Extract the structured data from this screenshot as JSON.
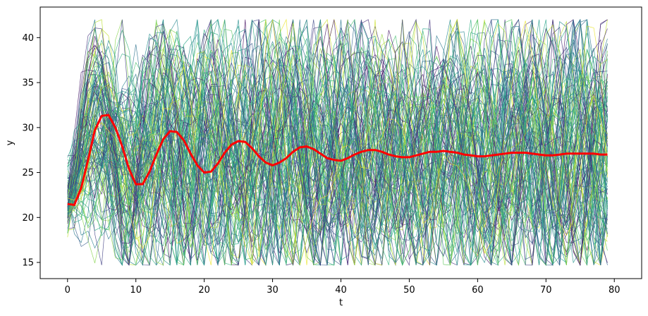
{
  "chart_data": {
    "type": "line",
    "title": "",
    "xlabel": "t",
    "ylabel": "y",
    "xlim": [
      -4,
      84
    ],
    "ylim": [
      13.2,
      43.4
    ],
    "xticks": [
      0,
      10,
      20,
      30,
      40,
      50,
      60,
      70,
      80
    ],
    "yticks": [
      15,
      20,
      25,
      30,
      35,
      40
    ],
    "grid": false,
    "legend": "none",
    "ensemble": {
      "count": 120,
      "t_start": 0,
      "t_end": 79,
      "colormap": "viridis",
      "linewidth_note": "thin",
      "description_values": {
        "start_range": [
          15,
          24
        ],
        "spread_range": [
          14.5,
          42
        ]
      }
    },
    "mean_series": {
      "color": "#ff0000",
      "x": [
        0,
        1,
        2,
        3,
        4,
        5,
        6,
        7,
        8,
        9,
        10,
        11,
        12,
        13,
        14,
        15,
        16,
        17,
        18,
        19,
        20,
        21,
        22,
        23,
        24,
        25,
        26,
        27,
        28,
        29,
        30,
        31,
        32,
        33,
        34,
        35,
        36,
        37,
        38,
        39,
        40,
        41,
        42,
        43,
        44,
        45,
        46,
        47,
        48,
        49,
        50,
        51,
        52,
        53,
        54,
        55,
        56,
        57,
        58,
        59,
        60,
        61,
        62,
        63,
        64,
        65,
        66,
        67,
        68,
        69,
        70,
        71,
        72,
        73,
        74,
        75,
        76,
        77,
        78,
        79
      ],
      "y": [
        21.5,
        21.4,
        23.3,
        26.4,
        29.7,
        31.3,
        31.4,
        30.0,
        27.9,
        25.4,
        23.7,
        23.7,
        25.1,
        27.0,
        28.7,
        29.6,
        29.5,
        28.6,
        27.1,
        25.8,
        25.0,
        25.1,
        26.0,
        27.2,
        28.1,
        28.5,
        28.4,
        27.7,
        26.8,
        26.1,
        25.8,
        26.1,
        26.6,
        27.3,
        27.8,
        27.9,
        27.6,
        27.1,
        26.6,
        26.4,
        26.3,
        26.6,
        27.0,
        27.3,
        27.5,
        27.5,
        27.3,
        27.0,
        26.8,
        26.7,
        26.7,
        26.9,
        27.1,
        27.3,
        27.3,
        27.4,
        27.3,
        27.2,
        27.0,
        26.9,
        26.8,
        26.8,
        26.9,
        27.0,
        27.1,
        27.2,
        27.2,
        27.2,
        27.1,
        27.0,
        26.9,
        26.9,
        27.0,
        27.1,
        27.1,
        27.1,
        27.1,
        27.1,
        27.0,
        27.0
      ]
    }
  }
}
